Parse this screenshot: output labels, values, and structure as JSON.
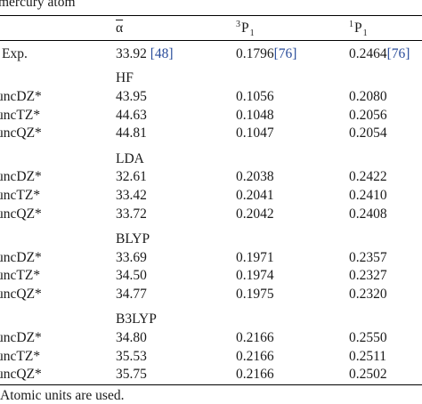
{
  "caption_fragment": "mercury atom",
  "header": {
    "alpha_symbol": "α",
    "col2_sup": "3",
    "col2_label": "P",
    "col2_sub": "1",
    "col3_sup": "1",
    "col3_label": "P",
    "col3_sub": "1"
  },
  "exp": {
    "label": "Exp.",
    "alpha": "33.92",
    "alpha_ref": "[48]",
    "p3": "0.1796",
    "p3_ref": "[76]",
    "p1": "0.2464",
    "p1_ref": "[76]"
  },
  "sections": [
    {
      "title": "HF",
      "rows": [
        {
          "basis": "uncDZ*",
          "alpha": "43.95",
          "p3": "0.1056",
          "p1": "0.2080"
        },
        {
          "basis": "uncTZ*",
          "alpha": "44.63",
          "p3": "0.1048",
          "p1": "0.2056"
        },
        {
          "basis": "uncQZ*",
          "alpha": "44.81",
          "p3": "0.1047",
          "p1": "0.2054"
        }
      ]
    },
    {
      "title": "LDA",
      "rows": [
        {
          "basis": "uncDZ*",
          "alpha": "32.61",
          "p3": "0.2038",
          "p1": "0.2422"
        },
        {
          "basis": "uncTZ*",
          "alpha": "33.42",
          "p3": "0.2041",
          "p1": "0.2410"
        },
        {
          "basis": "uncQZ*",
          "alpha": "33.72",
          "p3": "0.2042",
          "p1": "0.2408"
        }
      ]
    },
    {
      "title": "BLYP",
      "rows": [
        {
          "basis": "uncDZ*",
          "alpha": "33.69",
          "p3": "0.1971",
          "p1": "0.2357"
        },
        {
          "basis": "uncTZ*",
          "alpha": "34.50",
          "p3": "0.1974",
          "p1": "0.2327"
        },
        {
          "basis": "uncQZ*",
          "alpha": "34.77",
          "p3": "0.1975",
          "p1": "0.2320"
        }
      ]
    },
    {
      "title": "B3LYP",
      "rows": [
        {
          "basis": "uncDZ*",
          "alpha": "34.80",
          "p3": "0.2166",
          "p1": "0.2550"
        },
        {
          "basis": "uncTZ*",
          "alpha": "35.53",
          "p3": "0.2166",
          "p1": "0.2511"
        },
        {
          "basis": "uncQZ*",
          "alpha": "35.75",
          "p3": "0.2166",
          "p1": "0.2502"
        }
      ]
    }
  ],
  "footnote": "Atomic units are used."
}
